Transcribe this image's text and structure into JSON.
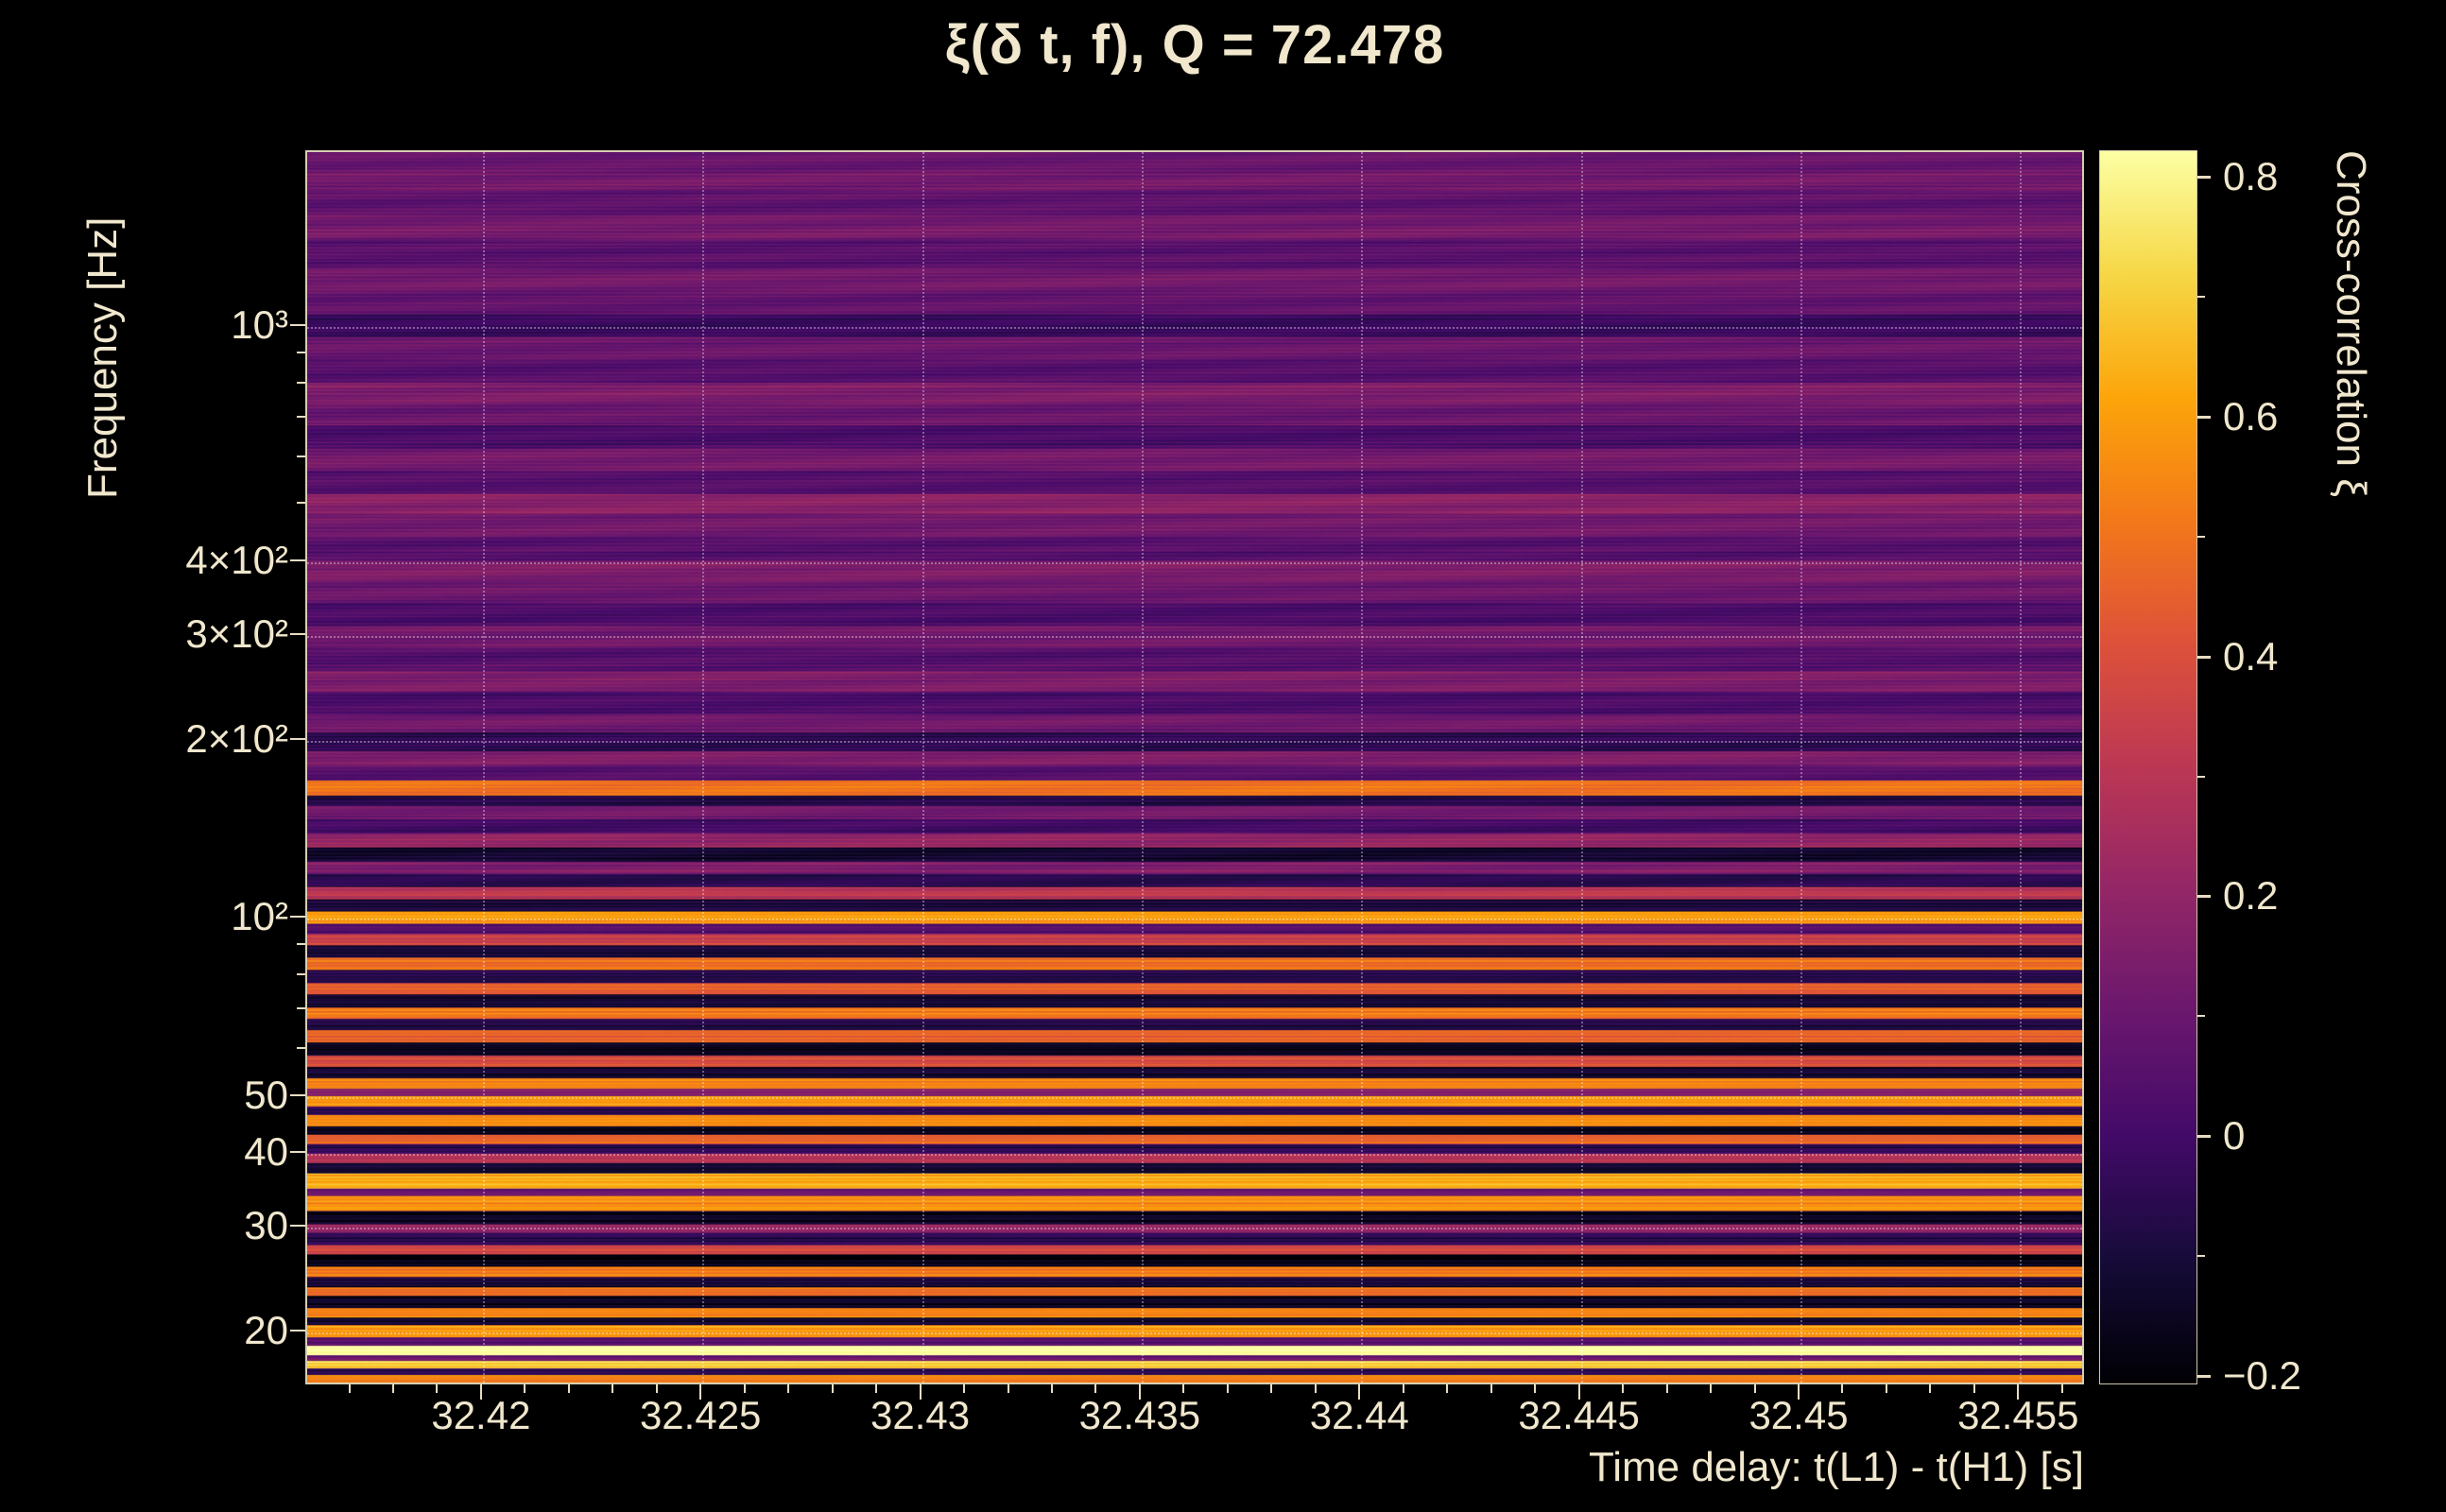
{
  "title": "ξ(δ t, f), Q = 72.478",
  "colors": {
    "background": "#000000",
    "text": "#f0e7cd",
    "frame": "#d8cdb2",
    "tick": "#e8ddc2",
    "grid": "#ffffff"
  },
  "chart_data": {
    "type": "heatmap",
    "title": "ξ(δ t, f), Q = 72.478",
    "xlabel": "Time delay: t(L1) - t(H1) [s]",
    "ylabel": "Frequency [Hz]",
    "colorbar_label": "Cross-correlation ξ",
    "x_scale": "linear",
    "y_scale": "log",
    "xlim": [
      32.416,
      32.4565
    ],
    "ylim": [
      16.2,
      1973
    ],
    "zlim": [
      -0.207,
      0.822
    ],
    "x_ticks": [
      32.42,
      32.425,
      32.43,
      32.435,
      32.44,
      32.445,
      32.45,
      32.455
    ],
    "x_tick_labels": [
      "32.42",
      "32.425",
      "32.43",
      "32.435",
      "32.44",
      "32.445",
      "32.45",
      "32.455"
    ],
    "x_minor_step": 0.001,
    "y_ticks": [
      1000,
      400,
      300,
      200,
      100,
      50,
      40,
      30,
      20
    ],
    "y_tick_labels": [
      "10³",
      "4×10²",
      "3×10²",
      "2×10²",
      "10²",
      "50",
      "40",
      "30",
      "20"
    ],
    "colorbar_ticks": [
      0.8,
      0.6,
      0.4,
      0.2,
      0,
      -0.2
    ],
    "colorbar_tick_labels": [
      "0.8",
      "0.6",
      "0.4",
      "0.2",
      "0",
      "−0.2"
    ],
    "colorbar_minor_ticks": [
      0.7,
      0.5,
      0.3,
      0.1,
      -0.1
    ],
    "colormap": "inferno",
    "colormap_hex": [
      "#000004",
      "#160b39",
      "#420a68",
      "#6a176e",
      "#932667",
      "#bc3754",
      "#dd513a",
      "#f37819",
      "#fca50a",
      "#f6d746",
      "#fcffa4"
    ],
    "grid": "dotted",
    "legend_position": "colorbar-right",
    "bands_note": "horizontal cross-correlation bands: each entry is [upper frequency bound in Hz, xi value]; first segment starts at ylim[0]",
    "bands": [
      [
        16.7,
        0.55
      ],
      [
        17.1,
        -0.05
      ],
      [
        17.6,
        0.7
      ],
      [
        18.0,
        0.12
      ],
      [
        18.7,
        0.85
      ],
      [
        19.3,
        0.05
      ],
      [
        20.3,
        0.6
      ],
      [
        20.9,
        -0.12
      ],
      [
        21.7,
        0.55
      ],
      [
        22.7,
        -0.15
      ],
      [
        23.5,
        0.48
      ],
      [
        24.5,
        -0.1
      ],
      [
        25.5,
        0.52
      ],
      [
        26.7,
        -0.18
      ],
      [
        27.7,
        0.35
      ],
      [
        29.1,
        -0.05
      ],
      [
        30.1,
        0.22
      ],
      [
        31.6,
        -0.15
      ],
      [
        33.6,
        0.58
      ],
      [
        34.6,
        0.08
      ],
      [
        36.6,
        0.62
      ],
      [
        38.1,
        -0.12
      ],
      [
        39.6,
        0.28
      ],
      [
        41.1,
        -0.05
      ],
      [
        42.6,
        0.45
      ],
      [
        44.1,
        -0.15
      ],
      [
        46.1,
        0.55
      ],
      [
        47.6,
        -0.05
      ],
      [
        49.6,
        0.6
      ],
      [
        51.1,
        0.18
      ],
      [
        53.1,
        0.55
      ],
      [
        55.6,
        -0.12
      ],
      [
        58.1,
        0.4
      ],
      [
        61.1,
        -0.15
      ],
      [
        64.1,
        0.45
      ],
      [
        67.1,
        -0.08
      ],
      [
        70.1,
        0.5
      ],
      [
        73.6,
        -0.12
      ],
      [
        77.1,
        0.45
      ],
      [
        81.1,
        -0.05
      ],
      [
        85.1,
        0.5
      ],
      [
        89.1,
        -0.1
      ],
      [
        93.1,
        0.35
      ],
      [
        97.1,
        0.05
      ],
      [
        102,
        0.6
      ],
      [
        107,
        -0.1
      ],
      [
        112,
        0.3
      ],
      [
        118,
        -0.05
      ],
      [
        124,
        0.15
      ],
      [
        131,
        -0.12
      ],
      [
        138,
        0.2
      ],
      [
        146,
        0.0
      ],
      [
        154,
        0.12
      ],
      [
        160,
        -0.08
      ],
      [
        170,
        0.5
      ],
      [
        180,
        0.05
      ],
      [
        190,
        0.15
      ],
      [
        205,
        -0.05
      ],
      [
        220,
        0.12
      ],
      [
        240,
        0.02
      ],
      [
        260,
        0.15
      ],
      [
        285,
        0.05
      ],
      [
        310,
        0.12
      ],
      [
        340,
        0.02
      ],
      [
        370,
        0.1
      ],
      [
        400,
        0.15
      ],
      [
        440,
        0.05
      ],
      [
        480,
        0.12
      ],
      [
        520,
        0.18
      ],
      [
        570,
        0.05
      ],
      [
        620,
        0.12
      ],
      [
        680,
        0.02
      ],
      [
        740,
        0.1
      ],
      [
        800,
        0.15
      ],
      [
        880,
        0.05
      ],
      [
        960,
        0.1
      ],
      [
        1050,
        -0.02
      ],
      [
        1150,
        0.08
      ],
      [
        1250,
        0.12
      ],
      [
        1400,
        0.06
      ],
      [
        1550,
        0.13
      ],
      [
        1700,
        0.08
      ],
      [
        1850,
        0.12
      ],
      [
        1973,
        0.09
      ]
    ],
    "noise": {
      "seed": 7,
      "amp_low": 0.1,
      "amp_high": 0.05,
      "ripple": 0.03,
      "split_hz": 110
    }
  }
}
